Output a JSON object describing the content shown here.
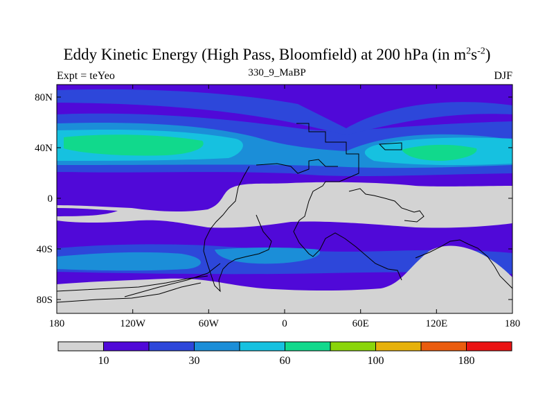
{
  "title": {
    "main": "Eddy Kinetic Energy (High Pass, Bloomfield) at 200 hPa (in m",
    "sup1": "2",
    "mid": "s",
    "sup2": "-2",
    "end": ")"
  },
  "subtitle": "330_9_MaBP",
  "left_label": "Expt = teYeo",
  "right_label": "DJF",
  "map": {
    "projection": "cylindrical-equidistant",
    "lat_ticks": [
      "80N",
      "40N",
      "0",
      "40S",
      "80S"
    ],
    "lon_ticks": [
      "180",
      "120W",
      "60W",
      "0",
      "60E",
      "120E",
      "180"
    ],
    "colors": {
      "bin0": "#d3d3d3",
      "bin1": "#5009d8",
      "bin2": "#2d47da",
      "bin3": "#1b8ed8",
      "bin4": "#16c1e0",
      "bin5": "#11d98c",
      "bin6": "#8ad50a",
      "bin7": "#e6b10b",
      "bin8": "#ea5c0e",
      "bin9": "#ea1313"
    }
  },
  "colorbar": {
    "labels": [
      "10",
      "30",
      "60",
      "100",
      "180"
    ],
    "bins": 10
  }
}
